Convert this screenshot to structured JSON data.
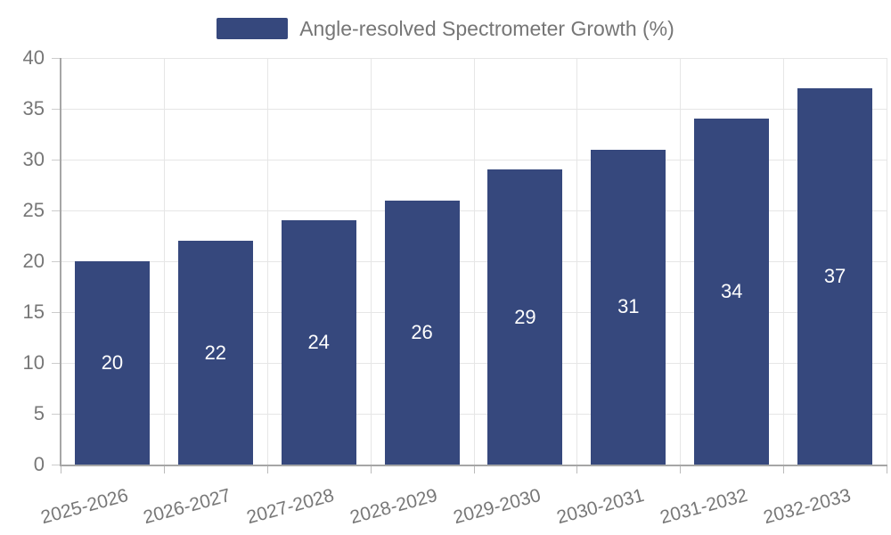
{
  "legend": {
    "label": "Angle-resolved Spectrometer Growth (%)"
  },
  "chart_data": {
    "type": "bar",
    "title": "Angle-resolved Spectrometer Growth (%)",
    "categories": [
      "2025-2026",
      "2026-2027",
      "2027-2028",
      "2028-2029",
      "2029-2030",
      "2030-2031",
      "2031-2032",
      "2032-2033"
    ],
    "values": [
      20,
      22,
      24,
      26,
      29,
      31,
      34,
      37
    ],
    "xlabel": "",
    "ylabel": "",
    "ylim": [
      0,
      40
    ],
    "yticks": [
      0,
      5,
      10,
      15,
      20,
      25,
      30,
      35,
      40
    ],
    "grid": true,
    "legend_position": "top",
    "x_label_rotation_deg": -15,
    "colors": {
      "bar": "#36487d",
      "bar_value_label": "#ffffff",
      "axis_text": "#777777",
      "legend_text": "#767676",
      "gridline": "#e6e6e6",
      "axis_line": "#a6a6a6",
      "background": "#ffffff"
    }
  }
}
